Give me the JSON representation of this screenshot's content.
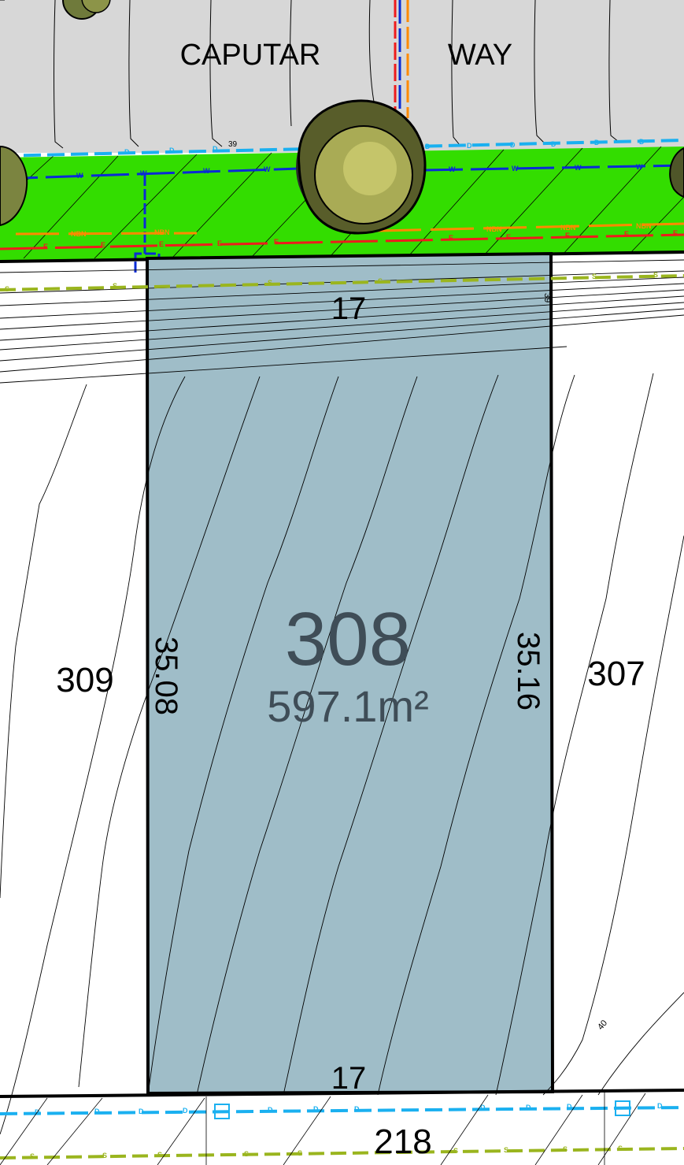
{
  "street": {
    "name_left": "CAPUTAR",
    "name_right": "WAY"
  },
  "lot": {
    "number": "308",
    "area": "597.1m²"
  },
  "dimensions": {
    "top": "17",
    "bottom": "17",
    "left": "35.08",
    "right": "35.16"
  },
  "neighbours": {
    "left": "309",
    "right": "307",
    "rear": "218"
  },
  "contour_labels": {
    "street": "39",
    "lot_top_right": "39",
    "lot_bottom_right": "40"
  },
  "utility_codes": {
    "drainage": "D",
    "water": "W",
    "electric": "E",
    "sewer": "S",
    "nbn": "NBN"
  },
  "colors": {
    "verge": "#33dd00",
    "road": "#d7d7d7",
    "lot_fill": "#9fbdc8",
    "lot_text": "#3f4d57",
    "drainage": "#1ab0f0",
    "water": "#0a2bd6",
    "electric": "#ee1c1c",
    "nbn": "#ff8a00",
    "sewer": "#9ab51e"
  },
  "icons": {
    "tree": "tree-icon",
    "pit": "drainage-pit-icon"
  }
}
